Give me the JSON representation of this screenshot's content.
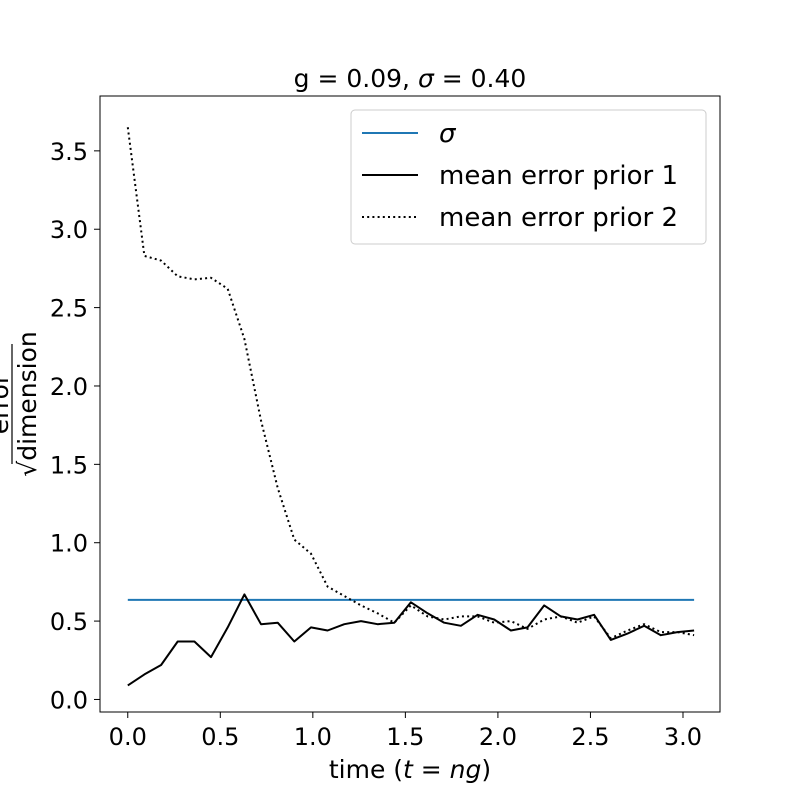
{
  "chart_data": {
    "type": "line",
    "title_prefix": "g = 0.09, ",
    "title_sigma": "σ",
    "title_suffix": " = 0.40",
    "xlabel_prefix": "time (",
    "xlabel_math": "t = ng",
    "xlabel_suffix": ")",
    "ylabel_numerator": "error",
    "ylabel_denominator": "√dimension",
    "xlim": [
      -0.15,
      3.2
    ],
    "ylim": [
      -0.08,
      3.85
    ],
    "xticks": [
      0.0,
      0.5,
      1.0,
      1.5,
      2.0,
      2.5,
      3.0
    ],
    "xtick_labels": [
      "0.0",
      "0.5",
      "1.0",
      "1.5",
      "2.0",
      "2.5",
      "3.0"
    ],
    "yticks": [
      0.0,
      0.5,
      1.0,
      1.5,
      2.0,
      2.5,
      3.0,
      3.5
    ],
    "ytick_labels": [
      "0.0",
      "0.5",
      "1.0",
      "1.5",
      "2.0",
      "2.5",
      "3.0",
      "3.5"
    ],
    "grid": false,
    "legend_placement": "top-right",
    "series": [
      {
        "name": "σ",
        "color": "#1f77b4",
        "style": "solid",
        "x": [
          0.0,
          3.06
        ],
        "y": [
          0.635,
          0.635
        ]
      },
      {
        "name": "mean error prior 1",
        "color": "#000000",
        "style": "solid",
        "x": [
          0.0,
          0.09,
          0.18,
          0.27,
          0.36,
          0.45,
          0.54,
          0.63,
          0.72,
          0.81,
          0.9,
          0.99,
          1.08,
          1.17,
          1.26,
          1.35,
          1.44,
          1.53,
          1.62,
          1.71,
          1.8,
          1.89,
          1.98,
          2.07,
          2.16,
          2.25,
          2.34,
          2.43,
          2.52,
          2.61,
          2.7,
          2.79,
          2.88,
          2.97,
          3.06
        ],
        "y": [
          0.09,
          0.16,
          0.22,
          0.37,
          0.37,
          0.27,
          0.46,
          0.67,
          0.48,
          0.49,
          0.37,
          0.46,
          0.44,
          0.48,
          0.5,
          0.48,
          0.49,
          0.62,
          0.55,
          0.49,
          0.47,
          0.54,
          0.51,
          0.44,
          0.46,
          0.6,
          0.53,
          0.51,
          0.54,
          0.38,
          0.42,
          0.47,
          0.41,
          0.43,
          0.44
        ]
      },
      {
        "name": "mean error prior 2",
        "color": "#000000",
        "style": "dotted",
        "x": [
          0.0,
          0.09,
          0.18,
          0.27,
          0.36,
          0.45,
          0.54,
          0.63,
          0.72,
          0.81,
          0.9,
          0.99,
          1.08,
          1.17,
          1.26,
          1.35,
          1.44,
          1.53,
          1.62,
          1.71,
          1.8,
          1.89,
          1.98,
          2.07,
          2.16,
          2.25,
          2.34,
          2.43,
          2.52,
          2.61,
          2.7,
          2.79,
          2.88,
          2.97,
          3.06
        ],
        "y": [
          3.65,
          2.83,
          2.8,
          2.7,
          2.68,
          2.69,
          2.62,
          2.3,
          1.78,
          1.35,
          1.02,
          0.93,
          0.72,
          0.66,
          0.6,
          0.55,
          0.49,
          0.6,
          0.53,
          0.51,
          0.53,
          0.53,
          0.49,
          0.5,
          0.45,
          0.51,
          0.53,
          0.49,
          0.53,
          0.39,
          0.44,
          0.48,
          0.43,
          0.43,
          0.41
        ]
      }
    ]
  }
}
